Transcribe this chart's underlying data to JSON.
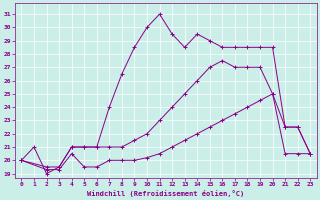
{
  "xlabel": "Windchill (Refroidissement éolien,°C)",
  "bg_color": "#cceee8",
  "line_color": "#880088",
  "xlim": [
    -0.5,
    23.5
  ],
  "ylim": [
    18.7,
    31.8
  ],
  "yticks": [
    19,
    20,
    21,
    22,
    23,
    24,
    25,
    26,
    27,
    28,
    29,
    30,
    31
  ],
  "xticks": [
    0,
    1,
    2,
    3,
    4,
    5,
    6,
    7,
    8,
    9,
    10,
    11,
    12,
    13,
    14,
    15,
    16,
    17,
    18,
    19,
    20,
    21,
    22,
    23
  ],
  "line1_x": [
    0,
    1,
    2,
    3,
    4,
    5,
    6,
    7,
    8,
    9,
    10,
    11,
    12,
    13,
    14,
    15,
    16,
    17,
    18,
    19,
    20,
    21,
    22,
    23
  ],
  "line1_y": [
    20,
    21,
    19,
    19.5,
    21,
    21,
    21,
    24,
    26.5,
    28.5,
    30,
    31,
    29.5,
    28.5,
    29.5,
    29,
    28.5,
    28.5,
    28.5,
    28.5,
    28.5,
    22.5,
    22.5,
    20.5
  ],
  "line2_x": [
    0,
    2,
    3,
    4,
    5,
    6,
    7,
    8,
    9,
    10,
    11,
    12,
    13,
    14,
    15,
    16,
    17,
    18,
    19,
    20,
    21,
    22,
    23
  ],
  "line2_y": [
    20,
    19.5,
    19.5,
    21,
    21,
    21,
    21,
    21,
    21.5,
    22,
    23,
    24,
    25,
    26,
    27,
    27.5,
    27,
    27,
    27,
    25,
    22.5,
    22.5,
    20.5
  ],
  "line3_x": [
    0,
    2,
    3,
    4,
    5,
    6,
    7,
    8,
    9,
    10,
    11,
    12,
    13,
    14,
    15,
    16,
    17,
    18,
    19,
    20,
    21,
    22,
    23
  ],
  "line3_y": [
    20,
    19.3,
    19.3,
    20.5,
    19.5,
    19.5,
    20,
    20,
    20,
    20.2,
    20.5,
    21,
    21.5,
    22,
    22.5,
    23,
    23.5,
    24,
    24.5,
    25,
    20.5,
    20.5,
    20.5
  ]
}
